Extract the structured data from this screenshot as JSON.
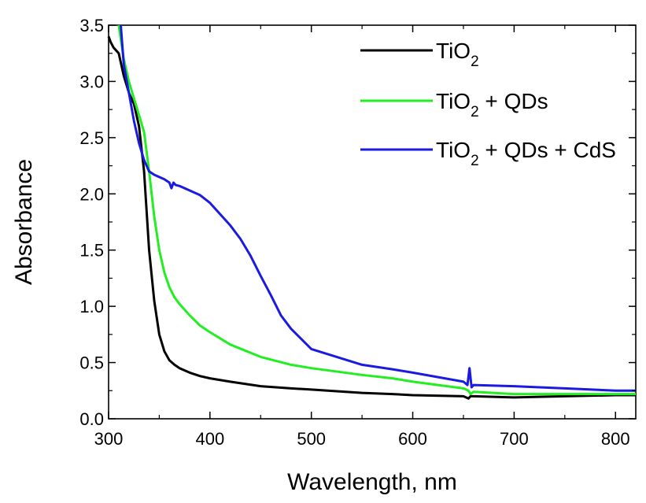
{
  "chart_data": {
    "type": "line",
    "xlabel": "Wavelength, nm",
    "ylabel": "Absorbance",
    "xlim": [
      300,
      820
    ],
    "ylim": [
      0.0,
      3.5
    ],
    "xticks": [
      300,
      400,
      500,
      600,
      700,
      800
    ],
    "yticks": [
      0.0,
      0.5,
      1.0,
      1.5,
      2.0,
      2.5,
      3.0,
      3.5
    ],
    "xtick_labels": [
      "300",
      "400",
      "500",
      "600",
      "700",
      "800"
    ],
    "ytick_labels": [
      "0.0",
      "0.5",
      "1.0",
      "1.5",
      "2.0",
      "2.5",
      "3.0",
      "3.5"
    ],
    "legend_position": "top-right",
    "grid": false,
    "series": [
      {
        "name": "TiO2",
        "legend_parts": [
          "TiO",
          "2",
          ""
        ],
        "color": "#000000",
        "x": [
          300,
          302,
          305,
          310,
          315,
          320,
          325,
          330,
          335,
          340,
          345,
          350,
          355,
          360,
          365,
          370,
          380,
          390,
          400,
          420,
          450,
          480,
          500,
          550,
          580,
          600,
          650,
          655,
          657,
          660,
          700,
          750,
          800,
          820
        ],
        "y": [
          3.4,
          3.35,
          3.3,
          3.25,
          3.05,
          2.9,
          2.8,
          2.6,
          2.2,
          1.5,
          1.05,
          0.75,
          0.6,
          0.52,
          0.48,
          0.45,
          0.41,
          0.38,
          0.36,
          0.33,
          0.29,
          0.27,
          0.26,
          0.23,
          0.22,
          0.21,
          0.2,
          0.18,
          0.2,
          0.2,
          0.19,
          0.2,
          0.21,
          0.21
        ]
      },
      {
        "name": "TiO2 + QDs",
        "legend_parts": [
          "TiO",
          "2",
          " + QDs"
        ],
        "color": "#22ee22",
        "x": [
          310,
          315,
          320,
          325,
          330,
          335,
          340,
          345,
          350,
          355,
          360,
          365,
          370,
          380,
          390,
          400,
          420,
          450,
          480,
          500,
          550,
          580,
          600,
          650,
          655,
          657,
          660,
          700,
          750,
          800,
          820
        ],
        "y": [
          3.5,
          3.2,
          3.0,
          2.85,
          2.7,
          2.55,
          2.2,
          1.8,
          1.5,
          1.3,
          1.17,
          1.08,
          1.02,
          0.92,
          0.83,
          0.77,
          0.66,
          0.55,
          0.48,
          0.45,
          0.39,
          0.36,
          0.33,
          0.27,
          0.25,
          0.22,
          0.24,
          0.22,
          0.22,
          0.22,
          0.22
        ]
      },
      {
        "name": "TiO2 + QDs + CdS",
        "legend_parts": [
          "TiO",
          "2",
          " + QDs + CdS"
        ],
        "color": "#1a1ae0",
        "x": [
          312,
          315,
          320,
          325,
          330,
          335,
          340,
          345,
          350,
          355,
          360,
          362,
          364,
          366,
          370,
          380,
          390,
          400,
          410,
          420,
          430,
          440,
          450,
          460,
          470,
          480,
          500,
          550,
          580,
          600,
          650,
          654,
          656,
          658,
          660,
          700,
          750,
          800,
          820
        ],
        "y": [
          3.5,
          3.15,
          2.9,
          2.65,
          2.45,
          2.3,
          2.2,
          2.17,
          2.15,
          2.13,
          2.1,
          2.05,
          2.1,
          2.08,
          2.07,
          2.03,
          1.99,
          1.92,
          1.82,
          1.72,
          1.6,
          1.45,
          1.27,
          1.1,
          0.92,
          0.8,
          0.62,
          0.48,
          0.44,
          0.41,
          0.33,
          0.3,
          0.45,
          0.28,
          0.3,
          0.29,
          0.27,
          0.25,
          0.25
        ]
      }
    ]
  }
}
